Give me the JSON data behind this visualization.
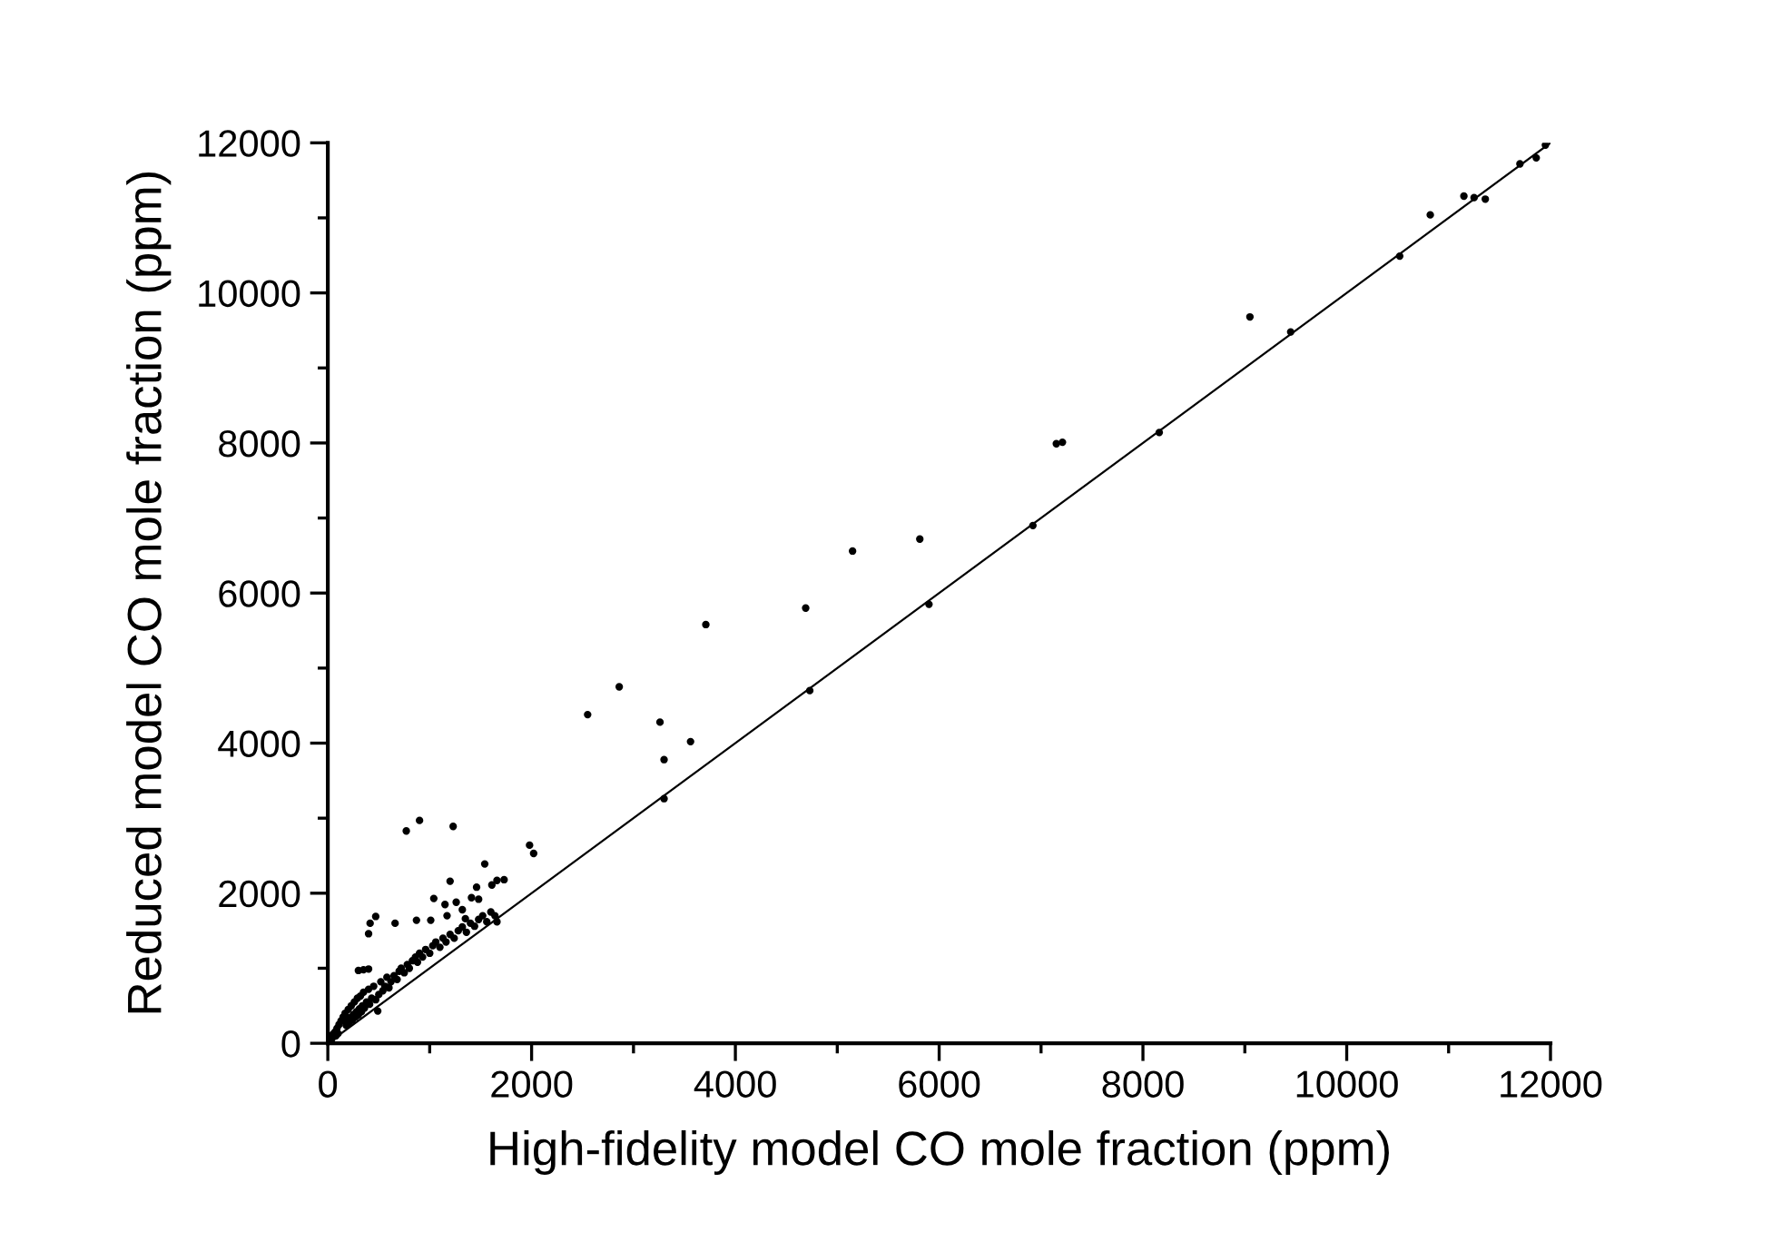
{
  "chart_data": {
    "type": "scatter",
    "xlabel": "High-fidelity model CO mole fraction (ppm)",
    "ylabel": "Reduced model CO mole fraction (ppm)",
    "xlim": [
      0,
      12000
    ],
    "ylim": [
      0,
      12000
    ],
    "xticks": [
      0,
      {
        "value": 1000,
        "label": null
      },
      2000,
      {
        "value": 3000,
        "label": null
      },
      4000,
      {
        "value": 5000,
        "label": null
      },
      6000,
      {
        "value": 7000,
        "label": null
      },
      8000,
      {
        "value": 9000,
        "label": null
      },
      10000,
      {
        "value": 11000,
        "label": null
      },
      12000
    ],
    "yticks": [
      0,
      {
        "value": 1000,
        "label": null
      },
      2000,
      {
        "value": 3000,
        "label": null
      },
      4000,
      {
        "value": 5000,
        "label": null
      },
      6000,
      {
        "value": 7000,
        "label": null
      },
      8000,
      {
        "value": 9000,
        "label": null
      },
      10000,
      {
        "value": 11000,
        "label": null
      },
      12000
    ],
    "grid": false,
    "legend": false,
    "series": [
      {
        "color": "#000000",
        "marker": "circle",
        "x": [
          40,
          50,
          70,
          80,
          90,
          100,
          110,
          130,
          150,
          170,
          180,
          190,
          200,
          210,
          220,
          230,
          240,
          250,
          260,
          270,
          280,
          290,
          300,
          310,
          320,
          330,
          340,
          350,
          360,
          380,
          400,
          410,
          430,
          450,
          470,
          500,
          520,
          540,
          560,
          580,
          600,
          620,
          650,
          680,
          700,
          720,
          750,
          780,
          800,
          830,
          860,
          880,
          900,
          930,
          960,
          1000,
          1030,
          1060,
          1100,
          1130,
          1160,
          1200,
          1240,
          1280,
          1320,
          1360,
          1400,
          1440,
          1480,
          1520,
          1560,
          1600,
          1640,
          300,
          350,
          400,
          490,
          400,
          415,
          470,
          660,
          870,
          1010,
          1170,
          1350,
          1320,
          1660,
          1040,
          1150,
          1260,
          1410,
          1480,
          1200,
          1460,
          1610,
          1660,
          1730,
          1540,
          1980,
          2020,
          770,
          900,
          1230,
          2550,
          2860,
          3260,
          3560,
          3300,
          3300,
          3710,
          4690,
          4730,
          5150,
          5810,
          5900,
          6920,
          7150,
          7210,
          8160,
          9050,
          9450,
          10520,
          10820,
          11150,
          11250,
          11360,
          11700,
          11860,
          11950
        ],
        "values": [
          60,
          120,
          150,
          100,
          200,
          130,
          250,
          300,
          350,
          400,
          240,
          300,
          450,
          280,
          340,
          500,
          310,
          380,
          550,
          350,
          420,
          600,
          380,
          460,
          630,
          420,
          500,
          680,
          470,
          550,
          720,
          520,
          600,
          760,
          580,
          650,
          820,
          700,
          760,
          880,
          740,
          820,
          900,
          850,
          960,
          1000,
          940,
          1050,
          1000,
          1100,
          1150,
          1080,
          1200,
          1150,
          1250,
          1200,
          1300,
          1350,
          1280,
          1400,
          1350,
          1450,
          1400,
          1500,
          1550,
          1480,
          1600,
          1560,
          1650,
          1700,
          1620,
          1750,
          1700,
          970,
          980,
          990,
          430,
          1460,
          1600,
          1690,
          1600,
          1640,
          1640,
          1700,
          1660,
          1780,
          1620,
          1930,
          1850,
          1880,
          1940,
          1920,
          2160,
          2080,
          2110,
          2170,
          2180,
          2390,
          2640,
          2530,
          2830,
          2970,
          2890,
          4380,
          4750,
          4280,
          4020,
          3780,
          3260,
          5580,
          5800,
          4700,
          6560,
          6720,
          5850,
          6900,
          7990,
          8010,
          8140,
          9680,
          9480,
          10490,
          11040,
          11290,
          11270,
          11250,
          11720,
          11800,
          11970
        ]
      },
      {
        "type": "line",
        "color": "#000000",
        "line_style": "solid",
        "marker": "none",
        "x": [
          0,
          12000
        ],
        "values": [
          0,
          12000
        ]
      }
    ]
  }
}
